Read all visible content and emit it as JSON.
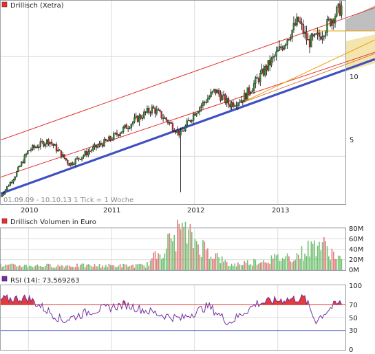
{
  "colors": {
    "frame": "#9aa0a6",
    "grid": "#dcdcdc",
    "candle_up": "#2e8b2e",
    "candle_down": "#cc2a2a",
    "channel": "#e03030",
    "support": "#4050c0",
    "projection_fill": "#f2dfa0",
    "projection_gray": "#b8b8b8",
    "resistance": "#f0a000",
    "rsi_line": "#7030a0",
    "rsi_fill": "#e03030",
    "marker": "#e03030"
  },
  "price_panel": {
    "title": "Drillisch (Xetra)",
    "info": "01.09.09 - 10.10.13   1 Tick = 1 Woche",
    "y_ticks": [
      "10",
      "5"
    ]
  },
  "volume_panel": {
    "title": "Drillisch Volumen in Euro",
    "y_ticks": [
      "80M",
      "60M",
      "40M",
      "20M",
      "0M"
    ]
  },
  "rsi_panel": {
    "title": "RSI (14): 73,569263",
    "y_ticks": [
      "100",
      "70",
      "50",
      "30",
      "0"
    ]
  },
  "x_axis": {
    "labels": [
      "2010",
      "2011",
      "2012",
      "2013"
    ]
  },
  "chart_data": [
    {
      "type": "candlestick",
      "title": "Drillisch (Xetra)",
      "period": "01.09.09 - 10.10.13",
      "interval": "1 Woche",
      "ylim": [
        2.6,
        12.8
      ],
      "y_tick_values": [
        10,
        5
      ],
      "x_years": [
        2010,
        2011,
        2012,
        2013
      ],
      "close_anchors": [
        {
          "date": "2009-09-01",
          "close": 3.0
        },
        {
          "date": "2009-11-01",
          "close": 4.0
        },
        {
          "date": "2010-01-01",
          "close": 5.3
        },
        {
          "date": "2010-04-01",
          "close": 5.8
        },
        {
          "date": "2010-07-01",
          "close": 4.6
        },
        {
          "date": "2010-10-01",
          "close": 5.3
        },
        {
          "date": "2011-01-01",
          "close": 5.9
        },
        {
          "date": "2011-04-01",
          "close": 6.7
        },
        {
          "date": "2011-07-01",
          "close": 7.4
        },
        {
          "date": "2011-09-01",
          "close": 6.8
        },
        {
          "date": "2011-11-01",
          "close": 6.1
        },
        {
          "date": "2012-01-01",
          "close": 7.2
        },
        {
          "date": "2012-04-01",
          "close": 8.3
        },
        {
          "date": "2012-06-01",
          "close": 7.6
        },
        {
          "date": "2012-08-01",
          "close": 7.9
        },
        {
          "date": "2012-10-01",
          "close": 8.8
        },
        {
          "date": "2013-01-01",
          "close": 10.2
        },
        {
          "date": "2013-04-01",
          "close": 11.8
        },
        {
          "date": "2013-05-15",
          "close": 10.7
        },
        {
          "date": "2013-07-01",
          "close": 11.0
        },
        {
          "date": "2013-09-01",
          "close": 12.0
        },
        {
          "date": "2013-10-10",
          "close": 12.5
        }
      ],
      "notable_low": {
        "date": "2011-11-01",
        "low": 3.2
      }
    },
    {
      "type": "bar",
      "title": "Drillisch Volumen in Euro",
      "ylim": [
        0,
        80000000
      ],
      "y_tick_values": [
        80000000,
        60000000,
        40000000,
        20000000,
        0
      ],
      "volume_anchors": [
        {
          "date": "2009-09-01",
          "volume": 9000000
        },
        {
          "date": "2011-06-01",
          "volume": 9000000
        },
        {
          "date": "2011-11-01",
          "volume": 78000000
        },
        {
          "date": "2012-06-01",
          "volume": 10000000
        },
        {
          "date": "2013-04-01",
          "volume": 30000000
        },
        {
          "date": "2013-07-01",
          "volume": 55000000
        },
        {
          "date": "2013-10-10",
          "volume": 20000000
        }
      ]
    },
    {
      "type": "line",
      "title": "RSI (14): 73,569263",
      "ylim": [
        0,
        100
      ],
      "y_tick_values": [
        100,
        70,
        50,
        30,
        0
      ],
      "reference_levels": [
        70,
        30
      ],
      "last_value": 73.569263,
      "rsi_anchors": [
        {
          "date": "2009-09-01",
          "rsi": 78
        },
        {
          "date": "2010-01-01",
          "rsi": 80
        },
        {
          "date": "2010-06-01",
          "rsi": 45
        },
        {
          "date": "2010-10-01",
          "rsi": 60
        },
        {
          "date": "2011-03-01",
          "rsi": 70
        },
        {
          "date": "2011-08-01",
          "rsi": 55
        },
        {
          "date": "2011-11-01",
          "rsi": 48
        },
        {
          "date": "2012-03-01",
          "rsi": 68
        },
        {
          "date": "2012-06-01",
          "rsi": 42
        },
        {
          "date": "2012-10-01",
          "rsi": 72
        },
        {
          "date": "2013-02-01",
          "rsi": 78
        },
        {
          "date": "2013-05-01",
          "rsi": 80
        },
        {
          "date": "2013-06-15",
          "rsi": 45
        },
        {
          "date": "2013-09-01",
          "rsi": 68
        },
        {
          "date": "2013-10-10",
          "rsi": 73.6
        }
      ]
    }
  ]
}
